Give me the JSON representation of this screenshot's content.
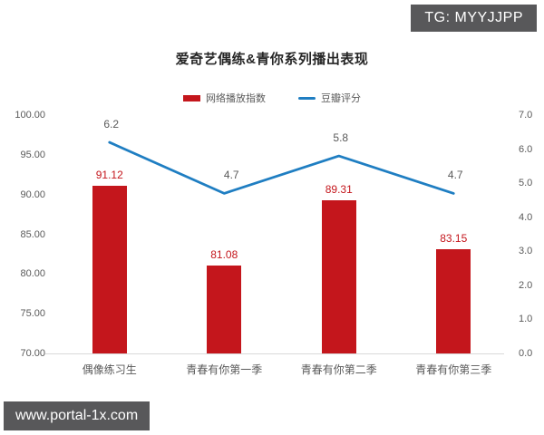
{
  "watermarks": {
    "top_right": "TG: MYYJJPP",
    "bottom_left": "www.portal-1x.com"
  },
  "chart_data": {
    "type": "bar",
    "title": "爱奇艺偶练&青你系列播出表现",
    "categories": [
      "偶像练习生",
      "青春有你第一季",
      "青春有你第二季",
      "青春有你第三季"
    ],
    "series": [
      {
        "name": "网络播放指数",
        "type": "bar",
        "axis": "left",
        "color": "#c4161c",
        "values": [
          91.12,
          81.08,
          89.31,
          83.15
        ],
        "labels": [
          "91.12",
          "81.08",
          "89.31",
          "83.15"
        ]
      },
      {
        "name": "豆瓣评分",
        "type": "line",
        "axis": "right",
        "color": "#1f7ec2",
        "values": [
          6.2,
          4.7,
          5.8,
          4.7
        ],
        "labels": [
          "6.2",
          "4.7",
          "5.8",
          "4.7"
        ]
      }
    ],
    "left_axis": {
      "min": 70,
      "max": 100,
      "step": 5,
      "tick_labels": [
        "70.00",
        "75.00",
        "80.00",
        "85.00",
        "90.00",
        "95.00",
        "100.00"
      ]
    },
    "right_axis": {
      "min": 0,
      "max": 7,
      "step": 1,
      "tick_labels": [
        "0.0",
        "1.0",
        "2.0",
        "3.0",
        "4.0",
        "5.0",
        "6.0",
        "7.0"
      ]
    },
    "grid": false,
    "legend_position": "top"
  },
  "colors": {
    "bar": "#c4161c",
    "bar_label": "#c4161c",
    "line": "#1f7ec2",
    "badge_bg": "#58585a",
    "axis_text": "#595959",
    "baseline": "#d9d9d9"
  }
}
